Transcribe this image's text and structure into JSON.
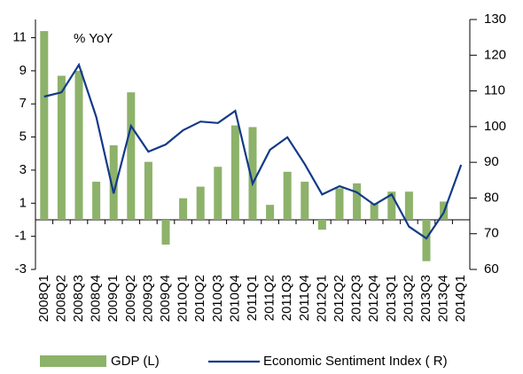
{
  "chart_data": {
    "type": "bar_line",
    "annotation": "% YoY",
    "categories": [
      "2008Q1",
      "2008Q2",
      "2008Q3",
      "2008Q4",
      "2009Q1",
      "2009Q2",
      "2009Q3",
      "2009Q4",
      "2010Q1",
      "2010Q2",
      "2010Q3",
      "2010Q4",
      "2011Q1",
      "2011Q2",
      "2011Q3",
      "2011Q4",
      "2012Q1",
      "2012Q2",
      "2012Q3",
      "2012Q4",
      "2013Q1",
      "2013Q2",
      "2013Q3",
      "2013Q4",
      "2014Q1"
    ],
    "series": [
      {
        "name": "GDP (L)",
        "type": "bar",
        "color": "#8db26a",
        "values": [
          11.4,
          8.7,
          9.0,
          2.3,
          4.5,
          7.7,
          3.5,
          -1.5,
          1.3,
          2.0,
          3.2,
          5.7,
          5.6,
          0.9,
          2.9,
          2.3,
          -0.6,
          1.9,
          2.2,
          1.0,
          1.7,
          1.7,
          -2.5,
          1.1,
          null
        ]
      },
      {
        "name": "Economic Sentiment Index ( R)",
        "type": "line",
        "axis": "y2",
        "color": "#123a87",
        "values": [
          108.4,
          109.6,
          117.3,
          102.7,
          81.3,
          100.2,
          93.0,
          95.0,
          99.0,
          101.4,
          101.0,
          104.4,
          84.0,
          93.5,
          97.0,
          89.5,
          81.0,
          83.3,
          81.6,
          78.1,
          81.0,
          72.0,
          68.7,
          75.9,
          89.3
        ]
      }
    ],
    "ylim": [
      -3,
      12.1
    ],
    "yticks": [
      -3,
      -1,
      1,
      3,
      5,
      7,
      9,
      11
    ],
    "y2lim": [
      60,
      130
    ],
    "y2ticks": [
      60,
      70,
      80,
      90,
      100,
      110,
      120,
      130
    ],
    "grid": false
  }
}
